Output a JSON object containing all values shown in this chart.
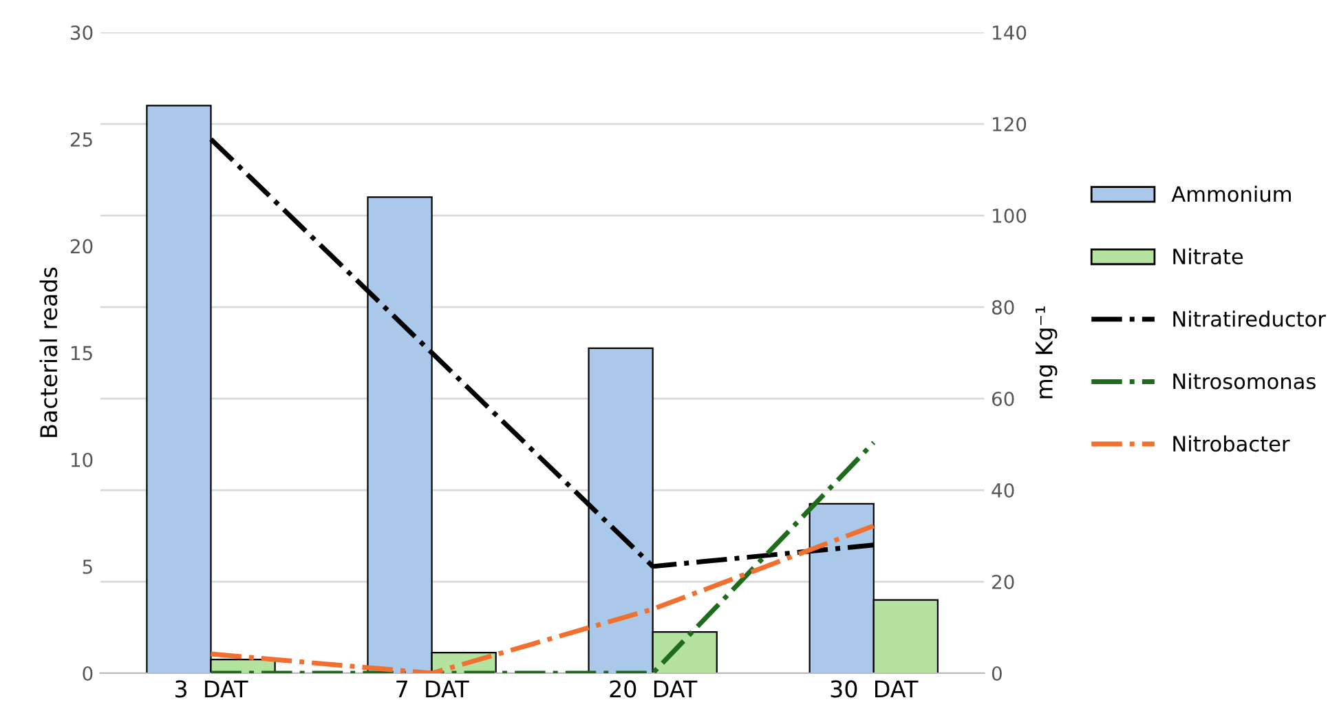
{
  "chart_data": {
    "type": "bar",
    "ylabel": "Bacterial reads",
    "y2label": "mg Kg⁻¹",
    "categories": [
      "3  DAT",
      "7  DAT",
      "20  DAT",
      "30  DAT"
    ],
    "series": [
      {
        "name": "Ammonium",
        "axis": "y2",
        "color": "#a9c8ea",
        "values": [
          124,
          104,
          71,
          37
        ]
      },
      {
        "name": "Nitrate",
        "axis": "y2",
        "color": "#b4e3a0",
        "values": [
          3,
          4.5,
          9,
          16
        ]
      },
      {
        "name": "Nitratireductor",
        "type": "line",
        "axis": "y",
        "color": "#000000",
        "line_style": "dashdot",
        "values": [
          25,
          15,
          5,
          6
        ]
      },
      {
        "name": "Nitrosomonas",
        "type": "line",
        "axis": "y",
        "color": "#1e6b1e",
        "line_style": "dashdot",
        "values": [
          0,
          0,
          0,
          10.8
        ]
      },
      {
        "name": "Nitrobacter",
        "type": "line",
        "axis": "y",
        "color": "#f07030",
        "line_style": "dashdot",
        "values": [
          0.9,
          0,
          3,
          6.9
        ]
      }
    ],
    "ylim": [
      0,
      30
    ],
    "yticks": [
      0,
      5,
      10,
      15,
      20,
      25,
      30
    ],
    "y2lim": [
      0,
      140
    ],
    "y2ticks": [
      0,
      20,
      40,
      60,
      80,
      100,
      120,
      140
    ],
    "grid": "y",
    "legend": "right"
  }
}
